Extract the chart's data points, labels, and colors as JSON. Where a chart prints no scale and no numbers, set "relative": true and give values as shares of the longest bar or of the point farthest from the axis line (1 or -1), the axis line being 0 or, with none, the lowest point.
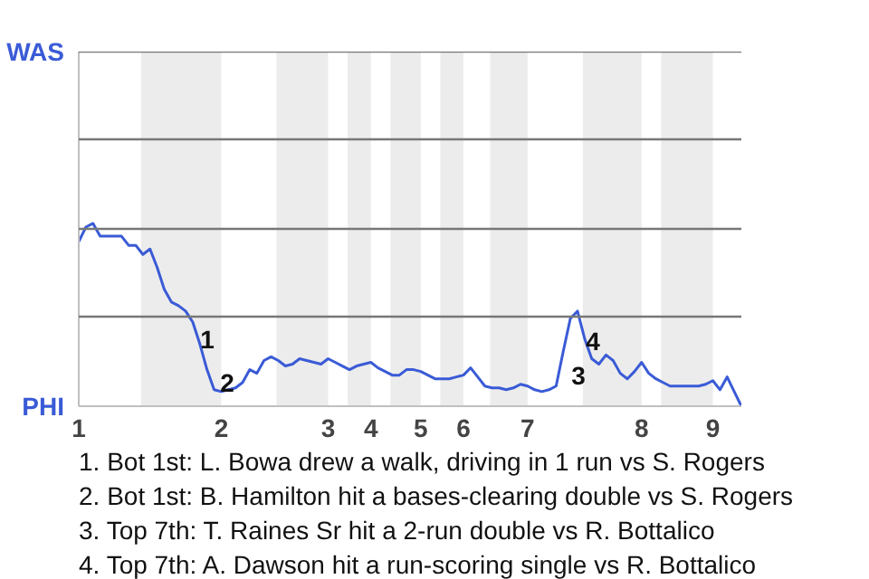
{
  "chart_data": {
    "type": "line",
    "relative": true,
    "categories": [
      "1",
      null,
      null,
      null,
      null,
      null,
      null,
      null,
      null,
      null,
      null,
      null,
      null,
      null,
      null,
      null,
      null,
      null,
      null,
      null,
      "2",
      null,
      null,
      null,
      null,
      null,
      null,
      null,
      null,
      null,
      null,
      null,
      null,
      null,
      null,
      "3",
      null,
      null,
      null,
      null,
      null,
      "4",
      null,
      null,
      null,
      null,
      null,
      null,
      "5",
      null,
      null,
      null,
      null,
      null,
      "6",
      null,
      null,
      null,
      null,
      null,
      null,
      null,
      null,
      "7",
      null,
      null,
      null,
      null,
      null,
      null,
      null,
      null,
      null,
      null,
      null,
      null,
      null,
      null,
      null,
      "8",
      null,
      null,
      null,
      null,
      null,
      null,
      null,
      null,
      null,
      "9",
      null,
      null,
      null,
      null
    ],
    "series": [
      {
        "color": "#3a5bd6",
        "values": [
          0.9,
          0.98,
          1,
          0.93,
          0.93,
          0.93,
          0.93,
          0.88,
          0.88,
          0.83,
          0.86,
          0.76,
          0.64,
          0.57,
          0.55,
          0.52,
          0.46,
          0.34,
          0.2,
          0.09,
          0.08,
          0.09,
          0.1,
          0.13,
          0.2,
          0.18,
          0.25,
          0.27,
          0.25,
          0.22,
          0.23,
          0.26,
          0.25,
          0.24,
          0.23,
          0.26,
          0.24,
          0.22,
          0.2,
          0.22,
          0.23,
          0.24,
          0.21,
          0.19,
          0.17,
          0.17,
          0.2,
          0.2,
          0.19,
          0.17,
          0.15,
          0.15,
          0.15,
          0.16,
          0.17,
          0.21,
          0.16,
          0.11,
          0.1,
          0.1,
          0.09,
          0.1,
          0.12,
          0.11,
          0.09,
          0.08,
          0.09,
          0.11,
          0.3,
          0.48,
          0.52,
          0.37,
          0.26,
          0.23,
          0.28,
          0.25,
          0.18,
          0.15,
          0.19,
          0.24,
          0.18,
          0.15,
          0.13,
          0.11,
          0.11,
          0.11,
          0.11,
          0.11,
          0.12,
          0.14,
          0.09,
          0.16,
          0.08,
          0
        ]
      }
    ],
    "ref_lines": [
      {
        "axis": "y",
        "value": 0.49,
        "color": "#777777"
      },
      {
        "axis": "y",
        "value": 0.97,
        "color": "#777777"
      },
      {
        "axis": "y",
        "value": 1.46,
        "color": "#777777"
      },
      {
        "axis": "y",
        "value": 1.94,
        "color": "#777777"
      }
    ],
    "annotations": [
      "WAS",
      "PHI",
      "1",
      "2",
      "3",
      "4",
      "1. Bot 1st: L. Bowa drew a walk, driving in 1 run vs S. Rogers",
      "2. Bot 1st: B. Hamilton hit a bases-clearing double vs S. Rogers",
      "3. Top 7th: T. Raines Sr hit a 2-run double vs R. Bottalico",
      "4. Top 7th: A. Dawson hit a run-scoring single vs R. Bottalico"
    ]
  }
}
